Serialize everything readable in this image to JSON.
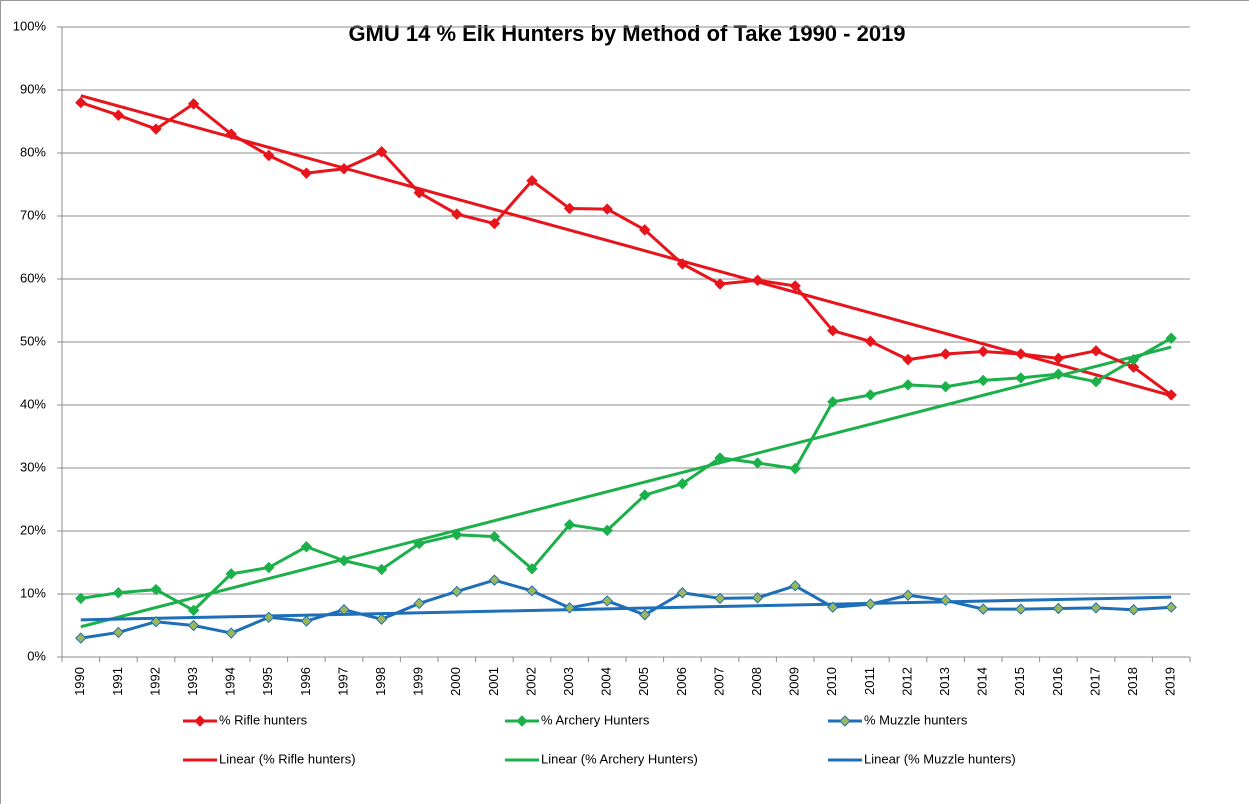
{
  "chart_data": {
    "type": "line",
    "title": "GMU 14 % Elk Hunters by Method of Take 1990 - 2019",
    "categories": [
      "1990",
      "1991",
      "1992",
      "1993",
      "1994",
      "1995",
      "1996",
      "1997",
      "1998",
      "1999",
      "2000",
      "2001",
      "2002",
      "2003",
      "2004",
      "2005",
      "2006",
      "2007",
      "2008",
      "2009",
      "2010",
      "2011",
      "2012",
      "2013",
      "2014",
      "2015",
      "2016",
      "2017",
      "2018",
      "2019"
    ],
    "series": [
      {
        "name": "% Rifle hunters",
        "color": "#e8141b",
        "marker_fill": "#e8141b",
        "values": [
          88,
          86,
          83.8,
          87.8,
          83,
          79.6,
          76.8,
          77.5,
          80.2,
          73.7,
          70.3,
          68.8,
          75.6,
          71.2,
          71.1,
          67.8,
          62.4,
          59.2,
          59.8,
          58.9,
          51.8,
          50.1,
          47.2,
          48.1,
          48.5,
          48.1,
          47.4,
          48.6,
          46,
          41.6
        ]
      },
      {
        "name": "% Archery Hunters",
        "color": "#1cb04b",
        "marker_fill": "#1cb04b",
        "values": [
          9.3,
          10.2,
          10.7,
          7.4,
          13.2,
          14.2,
          17.5,
          15.3,
          13.9,
          18,
          19.4,
          19.1,
          14,
          21,
          20.1,
          25.7,
          27.5,
          31.6,
          30.8,
          29.9,
          40.5,
          41.6,
          43.2,
          42.9,
          43.9,
          44.3,
          44.9,
          43.7,
          47.2,
          50.6
        ]
      },
      {
        "name": "% Muzzle hunters",
        "color": "#1f6fb8",
        "marker_fill": "#9ab85a",
        "values": [
          3,
          3.9,
          5.6,
          5,
          3.8,
          6.3,
          5.7,
          7.5,
          6,
          8.5,
          10.4,
          12.2,
          10.5,
          7.8,
          8.9,
          6.7,
          10.2,
          9.3,
          9.4,
          11.3,
          7.9,
          8.4,
          9.8,
          9,
          7.6,
          7.6,
          7.7,
          7.8,
          7.5,
          7.9
        ]
      }
    ],
    "trendlines": [
      {
        "name": "Linear (% Rifle hunters)",
        "color": "#e8141b",
        "start": 89.1,
        "end": 41.5
      },
      {
        "name": "Linear (% Archery Hunters)",
        "color": "#1cb04b",
        "start": 4.8,
        "end": 49.2
      },
      {
        "name": "Linear (% Muzzle hunters)",
        "color": "#1f6fb8",
        "start": 5.9,
        "end": 9.5
      }
    ],
    "ylim": [
      0,
      100
    ],
    "yticks": [
      {
        "value": 0,
        "label": "0%"
      },
      {
        "value": 10,
        "label": "10%"
      },
      {
        "value": 20,
        "label": "20%"
      },
      {
        "value": 30,
        "label": "30%"
      },
      {
        "value": 40,
        "label": "40%"
      },
      {
        "value": 50,
        "label": "50%"
      },
      {
        "value": 60,
        "label": "60%"
      },
      {
        "value": 70,
        "label": "70%"
      },
      {
        "value": 80,
        "label": "80%"
      },
      {
        "value": 90,
        "label": "90%"
      },
      {
        "value": 100,
        "label": "100%"
      }
    ],
    "grid": true,
    "legend": "bottom"
  }
}
